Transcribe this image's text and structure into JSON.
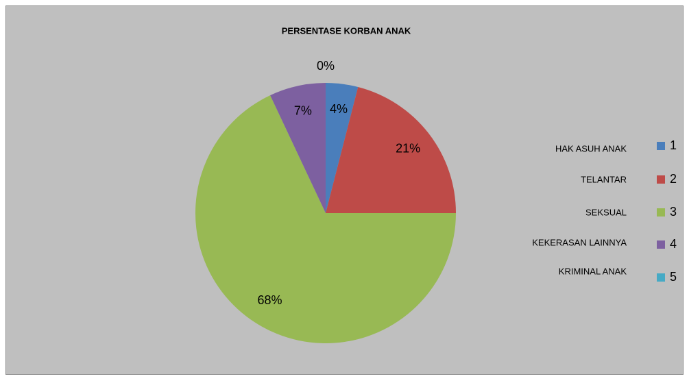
{
  "chart_data": {
    "type": "pie",
    "title": "PERSENTASE  KORBAN  ANAK",
    "categories": [
      "1",
      "2",
      "3",
      "4",
      "5"
    ],
    "values": [
      4,
      21,
      68,
      7,
      0
    ],
    "value_labels": [
      "4%",
      "21%",
      "68%",
      "7%",
      "0%"
    ],
    "colors": [
      "#4a7ebb",
      "#be4b48",
      "#98b954",
      "#7d60a0",
      "#46aac5"
    ],
    "legend_notes": [
      "HAK  ASUH  ANAK",
      "TELANTAR",
      "SEKSUAL",
      "KEKERASAN  LAINNYA",
      "KRIMINAL  ANAK"
    ],
    "legend": "right"
  }
}
